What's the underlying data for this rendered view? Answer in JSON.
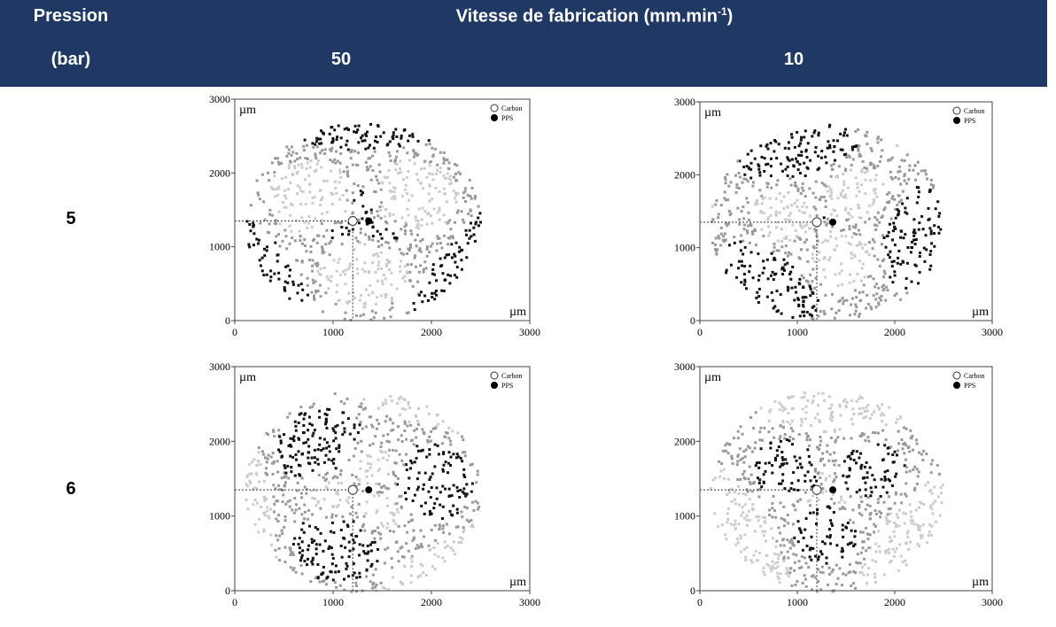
{
  "header": {
    "pressure_title": "Pression",
    "pressure_unit": "(bar)",
    "speed_title": {
      "text": "Vitesse de fabrication (mm.min",
      "exponent": "-1",
      "suffix": ")"
    },
    "speeds": [
      "50",
      "10"
    ]
  },
  "rows": [
    {
      "pressure": "5",
      "plots": [
        {
          "y_unit": "µm",
          "x_unit": "µm",
          "xticks": [
            "0",
            "1000",
            "2000",
            "3000"
          ],
          "yticks": [
            "0",
            "1000",
            "2000",
            "3000"
          ],
          "legend": [
            "Carbon",
            "PPS"
          ]
        },
        {
          "y_unit": "µm",
          "x_unit": "µm",
          "xticks": [
            "0",
            "1000",
            "2000",
            "3000"
          ],
          "yticks": [
            "0",
            "1000",
            "2000",
            "3000"
          ],
          "legend": [
            "Carbon",
            "PPS"
          ]
        }
      ]
    },
    {
      "pressure": "6",
      "plots": [
        {
          "y_unit": "µm",
          "x_unit": "µm",
          "xticks": [
            "0",
            "1000",
            "2000",
            "3000"
          ],
          "yticks": [
            "0",
            "1000",
            "2000",
            "3000"
          ],
          "legend": [
            "Carbon",
            "PPS"
          ]
        },
        {
          "y_unit": "µm",
          "x_unit": "µm",
          "xticks": [
            "0",
            "1000",
            "2000",
            "3000"
          ],
          "yticks": [
            "0",
            "1000",
            "2000",
            "3000"
          ],
          "legend": [
            "Carbon",
            "PPS"
          ]
        }
      ]
    }
  ]
}
